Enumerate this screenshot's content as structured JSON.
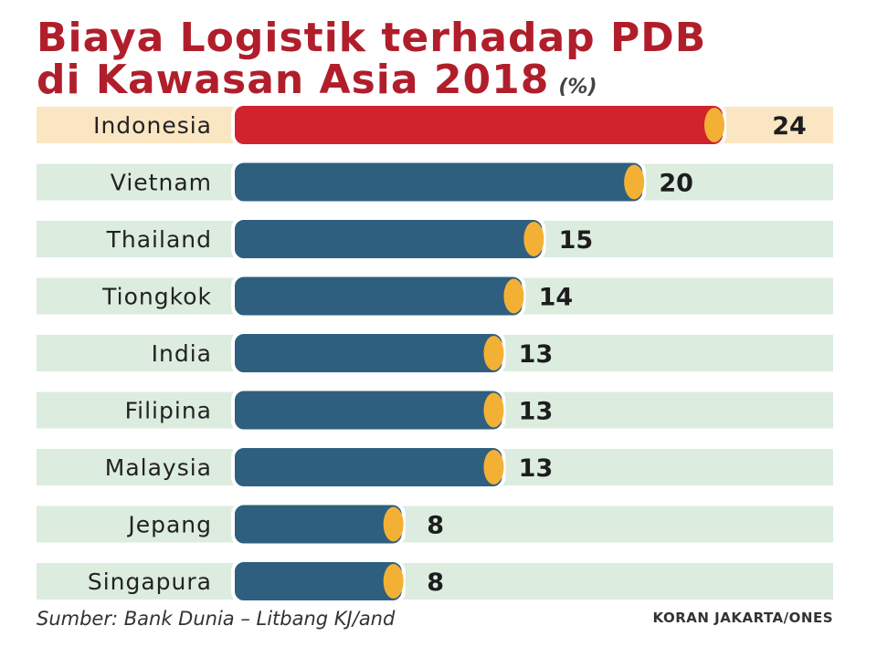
{
  "chart_data": {
    "type": "bar",
    "title_line1": "Biaya Logistik terhadap PDB",
    "title_line2": "di Kawasan Asia 2018",
    "unit": "(%)",
    "categories": [
      "Indonesia",
      "Vietnam",
      "Thailand",
      "Tiongkok",
      "India",
      "Filipina",
      "Malaysia",
      "Jepang",
      "Singapura"
    ],
    "values": [
      24,
      20,
      15,
      14,
      13,
      13,
      13,
      8,
      8
    ],
    "highlight": "Indonesia",
    "xlim": [
      0,
      24
    ],
    "colors": {
      "highlight_bar": "#d0232e",
      "bar": "#2f5f7e",
      "cap": "#f2b134",
      "highlight_row": "#fbe6c4",
      "row": "#dcecdf",
      "title": "#b11e2b"
    }
  },
  "footer": {
    "source": "Sumber: Bank Dunia – Litbang KJ/and",
    "credit": "KORAN JAKARTA/ONES"
  }
}
